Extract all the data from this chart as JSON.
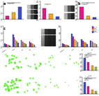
{
  "rowA": {
    "left_bar": {
      "values": [
        1.0,
        2.2,
        3.8
      ],
      "colors": [
        "#e61688",
        "#f5a623",
        "#3b4dcc"
      ],
      "ylim": [
        0,
        5.5
      ]
    },
    "mid_bar": {
      "values": [
        1.5,
        0.8,
        0.4
      ],
      "colors": [
        "#e61688",
        "#f5a623",
        "#3b4dcc"
      ],
      "ylim": [
        0,
        2.5
      ]
    },
    "right_bar": {
      "values": [
        3.5,
        1.0,
        0.5
      ],
      "colors": [
        "#e61688",
        "#f5a623",
        "#3b4dcc"
      ],
      "ylim": [
        0,
        5.0
      ]
    }
  },
  "rowB": {
    "left_series": [
      {
        "color": "#3b4dcc",
        "values": [
          1.0,
          3.5,
          2.0,
          1.5
        ]
      },
      {
        "color": "#e61688",
        "values": [
          0.8,
          2.8,
          1.5,
          1.2
        ]
      },
      {
        "color": "#f5a623",
        "values": [
          0.6,
          2.0,
          1.2,
          1.0
        ]
      },
      {
        "color": "#9dc63b",
        "values": [
          0.5,
          1.5,
          1.0,
          0.8
        ]
      },
      {
        "color": "#8b2be2",
        "values": [
          0.4,
          1.2,
          0.8,
          0.6
        ]
      }
    ],
    "right_series": [
      {
        "color": "#3b4dcc",
        "label": "ABCA1",
        "values": [
          1.0,
          3.8,
          2.2,
          1.8
        ]
      },
      {
        "color": "#e61688",
        "label": "LXRa",
        "values": [
          0.8,
          3.0,
          1.8,
          1.5
        ]
      },
      {
        "color": "#f5a623",
        "label": "ABCG1",
        "values": [
          0.6,
          2.2,
          1.4,
          1.1
        ]
      },
      {
        "color": "#9dc63b",
        "label": "SR-B1",
        "values": [
          0.5,
          1.8,
          1.1,
          0.9
        ]
      },
      {
        "color": "#8b2be2",
        "label": "ABCA7",
        "values": [
          0.4,
          1.4,
          0.8,
          0.7
        ]
      }
    ],
    "groups": [
      "Control",
      "Exo",
      "si1",
      "si2"
    ],
    "ylim": [
      0,
      6.0
    ]
  },
  "rowC": {
    "bar_values": [
      3.0,
      2.0,
      1.2,
      0.8
    ],
    "bar_colors": [
      "#3b4dcc",
      "#e61688",
      "#f5a623",
      "#9dc63b"
    ],
    "ylim": [
      0,
      4.0
    ],
    "n_dots": [
      20,
      12,
      8,
      6
    ],
    "dot_sizes": [
      4,
      3,
      2,
      2
    ]
  },
  "rowD": {
    "bar_values": [
      2.8,
      1.8,
      1.0,
      0.6
    ],
    "bar_colors": [
      "#3b4dcc",
      "#e61688",
      "#f5a623",
      "#9dc63b"
    ],
    "ylim": [
      0,
      4.0
    ],
    "n_dots": [
      25,
      14,
      6,
      4
    ],
    "dot_sizes": [
      5,
      3,
      2,
      1
    ]
  },
  "bg_color": "#ffffff",
  "micro_bg": "#0d1a0d",
  "green": "#55ee22",
  "wb_gray": "#b8b8b8",
  "wb_dark": "#404040"
}
